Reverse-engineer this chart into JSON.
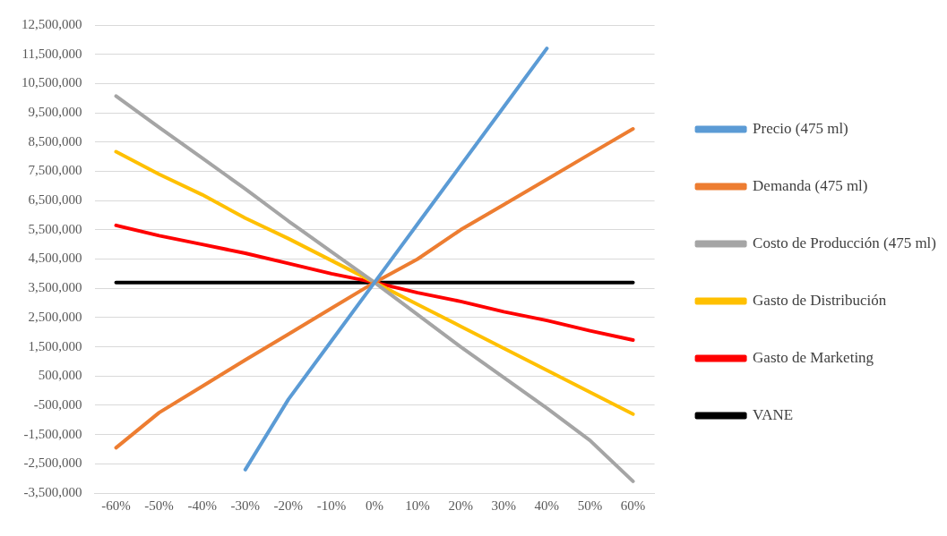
{
  "chart_data": {
    "type": "line",
    "categories": [
      "-60%",
      "-50%",
      "-40%",
      "-30%",
      "-20%",
      "-10%",
      "0%",
      "10%",
      "20%",
      "30%",
      "40%",
      "50%",
      "60%"
    ],
    "series": [
      {
        "name": "Precio (475 ml)",
        "color": "#5b9bd5",
        "values": [
          null,
          null,
          null,
          -2700000,
          -300000,
          1700000,
          3700000,
          5700000,
          7700000,
          9700000,
          11700000,
          null,
          null
        ]
      },
      {
        "name": "Demanda (475 ml)",
        "color": "#ed7d31",
        "values": [
          -1950000,
          -750000,
          150000,
          1050000,
          1930000,
          2820000,
          3700000,
          4500000,
          5500000,
          6360000,
          7220000,
          8090000,
          8950000
        ]
      },
      {
        "name": "Costo de Producción (475 ml)",
        "color": "#a5a5a5",
        "values": [
          10070000,
          9000000,
          7950000,
          6900000,
          5800000,
          4750000,
          3700000,
          2600000,
          1500000,
          450000,
          -600000,
          -1700000,
          -3100000
        ]
      },
      {
        "name": "Gasto de Distribución",
        "color": "#ffc000",
        "values": [
          8170000,
          7400000,
          6700000,
          5900000,
          5200000,
          4450000,
          3700000,
          2950000,
          2200000,
          1450000,
          700000,
          -50000,
          -800000
        ]
      },
      {
        "name": "Gasto de Marketing",
        "color": "#ff0000",
        "values": [
          5650000,
          5300000,
          5000000,
          4700000,
          4350000,
          4000000,
          3700000,
          3350000,
          3050000,
          2700000,
          2400000,
          2050000,
          1730000
        ]
      },
      {
        "name": "VANE",
        "color": "#000000",
        "values": [
          3700000,
          3700000,
          3700000,
          3700000,
          3700000,
          3700000,
          3700000,
          3700000,
          3700000,
          3700000,
          3700000,
          3700000,
          3700000
        ]
      }
    ],
    "ylim": [
      -3500000,
      12500000
    ],
    "yticks": [
      {
        "value": -3500000,
        "label": "-3,500,000"
      },
      {
        "value": -2500000,
        "label": "-2,500,000"
      },
      {
        "value": -1500000,
        "label": "-1,500,000"
      },
      {
        "value": -500000,
        "label": "-500,000"
      },
      {
        "value": 500000,
        "label": "500,000"
      },
      {
        "value": 1500000,
        "label": "1,500,000"
      },
      {
        "value": 2500000,
        "label": "2,500,000"
      },
      {
        "value": 3500000,
        "label": "3,500,000"
      },
      {
        "value": 4500000,
        "label": "4,500,000"
      },
      {
        "value": 5500000,
        "label": "5,500,000"
      },
      {
        "value": 6500000,
        "label": "6,500,000"
      },
      {
        "value": 7500000,
        "label": "7,500,000"
      },
      {
        "value": 8500000,
        "label": "8,500,000"
      },
      {
        "value": 9500000,
        "label": "9,500,000"
      },
      {
        "value": 10500000,
        "label": "10,500,000"
      },
      {
        "value": 11500000,
        "label": "11,500,000"
      },
      {
        "value": 12500000,
        "label": "12,500,000"
      }
    ],
    "grid": "y",
    "legend": "right",
    "marker": "none",
    "line_style": "solid"
  }
}
